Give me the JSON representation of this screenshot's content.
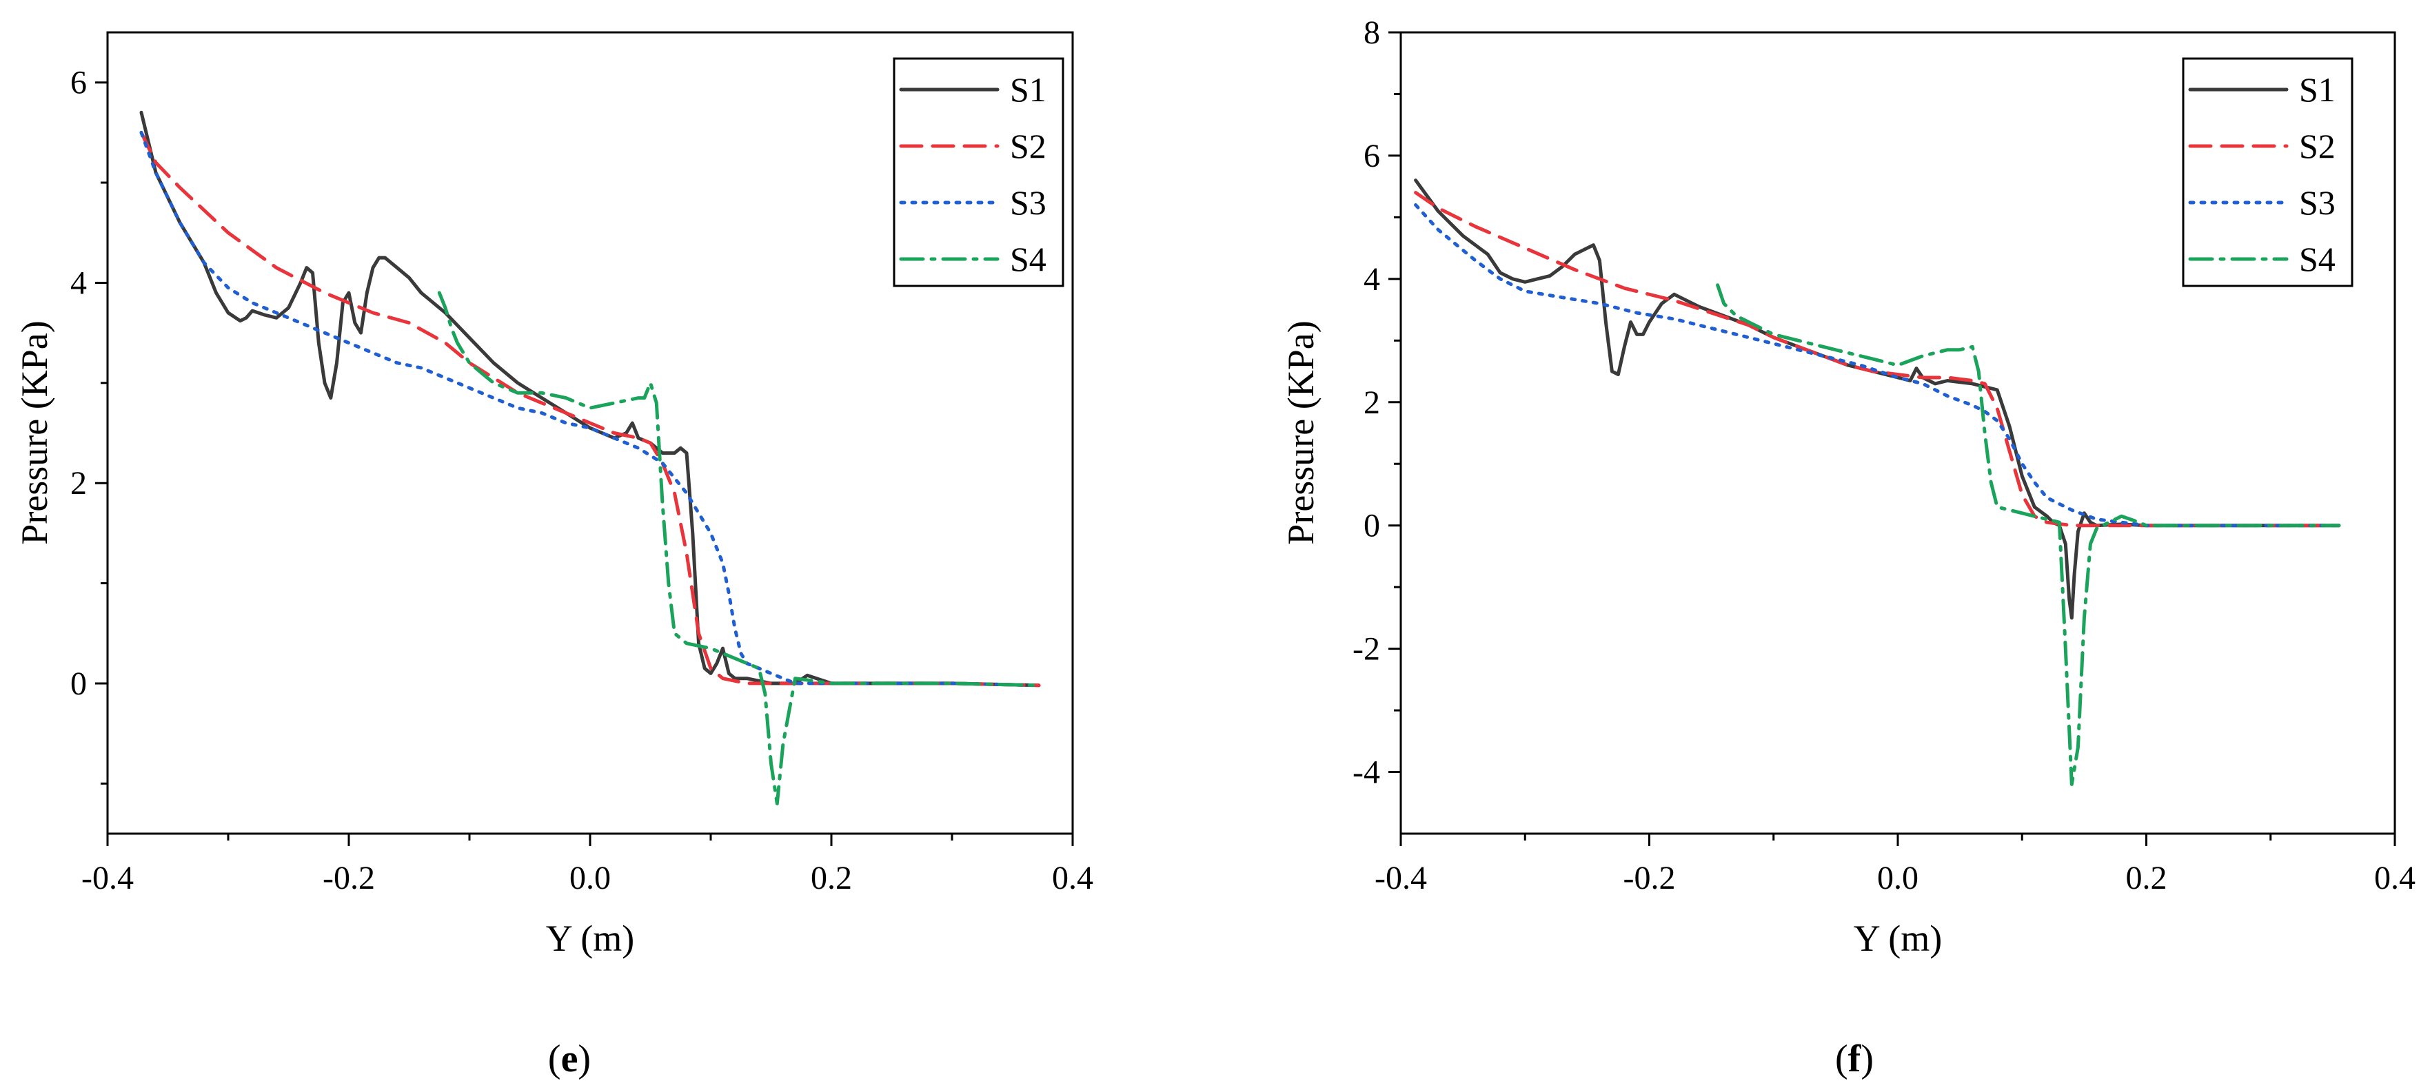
{
  "chart_data": [
    {
      "type": "line",
      "panel_label": "e",
      "title": "",
      "xlabel": "Y (m)",
      "ylabel": "Pressure (KPa)",
      "xlim": [
        -0.4,
        0.4
      ],
      "ylim": [
        -1.5,
        6.5
      ],
      "xticks": [
        -0.4,
        -0.2,
        0.0,
        0.2,
        0.4
      ],
      "xtick_labels": [
        "-0.4",
        "-0.2",
        "0.0",
        "0.2",
        "0.4"
      ],
      "yticks": [
        0,
        2,
        4,
        6
      ],
      "ytick_labels": [
        "0",
        "2",
        "4",
        "6"
      ],
      "legend_position": "top-right",
      "series": [
        {
          "name": "S1",
          "color": "#3a3a3a",
          "dash": "solid",
          "x": [
            -0.372,
            -0.36,
            -0.34,
            -0.32,
            -0.31,
            -0.3,
            -0.29,
            -0.285,
            -0.28,
            -0.275,
            -0.27,
            -0.26,
            -0.25,
            -0.24,
            -0.235,
            -0.23,
            -0.225,
            -0.22,
            -0.215,
            -0.21,
            -0.205,
            -0.2,
            -0.195,
            -0.19,
            -0.185,
            -0.18,
            -0.175,
            -0.17,
            -0.16,
            -0.15,
            -0.14,
            -0.13,
            -0.12,
            -0.1,
            -0.08,
            -0.06,
            -0.04,
            -0.02,
            0.0,
            0.01,
            0.02,
            0.03,
            0.035,
            0.04,
            0.05,
            0.06,
            0.07,
            0.075,
            0.08,
            0.085,
            0.09,
            0.095,
            0.1,
            0.105,
            0.11,
            0.115,
            0.12,
            0.13,
            0.15,
            0.17,
            0.18,
            0.2,
            0.3,
            0.372
          ],
          "y": [
            5.7,
            5.1,
            4.6,
            4.2,
            3.9,
            3.7,
            3.62,
            3.65,
            3.72,
            3.7,
            3.68,
            3.65,
            3.75,
            4.0,
            4.15,
            4.1,
            3.4,
            3.0,
            2.85,
            3.2,
            3.8,
            3.9,
            3.6,
            3.5,
            3.9,
            4.15,
            4.25,
            4.25,
            4.15,
            4.05,
            3.9,
            3.8,
            3.7,
            3.45,
            3.2,
            3.0,
            2.85,
            2.7,
            2.55,
            2.5,
            2.45,
            2.5,
            2.6,
            2.45,
            2.4,
            2.3,
            2.3,
            2.35,
            2.3,
            1.5,
            0.4,
            0.15,
            0.1,
            0.2,
            0.35,
            0.1,
            0.05,
            0.05,
            0.0,
            0.0,
            0.08,
            0.0,
            0.0,
            -0.02
          ]
        },
        {
          "name": "S2",
          "color": "#e8343a",
          "dash": "long",
          "x": [
            -0.372,
            -0.36,
            -0.34,
            -0.3,
            -0.26,
            -0.22,
            -0.18,
            -0.15,
            -0.12,
            -0.1,
            -0.08,
            -0.06,
            -0.04,
            -0.02,
            0.0,
            0.02,
            0.04,
            0.05,
            0.06,
            0.07,
            0.08,
            0.09,
            0.1,
            0.11,
            0.13,
            0.15,
            0.2,
            0.3,
            0.372
          ],
          "y": [
            5.5,
            5.2,
            4.95,
            4.5,
            4.15,
            3.9,
            3.7,
            3.6,
            3.4,
            3.2,
            3.05,
            2.9,
            2.8,
            2.7,
            2.6,
            2.5,
            2.45,
            2.4,
            2.2,
            1.9,
            1.3,
            0.5,
            0.15,
            0.05,
            0.0,
            0.0,
            0.0,
            0.0,
            -0.02
          ]
        },
        {
          "name": "S3",
          "color": "#1f5fd1",
          "dash": "dot",
          "x": [
            -0.372,
            -0.36,
            -0.34,
            -0.32,
            -0.3,
            -0.28,
            -0.26,
            -0.24,
            -0.22,
            -0.2,
            -0.18,
            -0.16,
            -0.14,
            -0.12,
            -0.1,
            -0.08,
            -0.06,
            -0.04,
            -0.02,
            0.0,
            0.02,
            0.04,
            0.06,
            0.08,
            0.09,
            0.1,
            0.11,
            0.115,
            0.12,
            0.125,
            0.13,
            0.14,
            0.15,
            0.17,
            0.2,
            0.3,
            0.372
          ],
          "y": [
            5.5,
            5.1,
            4.6,
            4.2,
            3.95,
            3.8,
            3.7,
            3.6,
            3.5,
            3.4,
            3.3,
            3.2,
            3.15,
            3.05,
            2.95,
            2.85,
            2.75,
            2.7,
            2.6,
            2.55,
            2.45,
            2.35,
            2.2,
            1.9,
            1.7,
            1.5,
            1.2,
            0.9,
            0.55,
            0.3,
            0.2,
            0.15,
            0.1,
            0.0,
            0.0,
            0.0,
            -0.02
          ]
        },
        {
          "name": "S4",
          "color": "#1aa35a",
          "dash": "dashdot",
          "x": [
            -0.125,
            -0.12,
            -0.115,
            -0.11,
            -0.1,
            -0.09,
            -0.08,
            -0.06,
            -0.04,
            -0.02,
            0.0,
            0.02,
            0.04,
            0.045,
            0.05,
            0.055,
            0.06,
            0.065,
            0.07,
            0.08,
            0.1,
            0.12,
            0.14,
            0.145,
            0.15,
            0.155,
            0.16,
            0.17,
            0.2,
            0.3,
            0.372
          ],
          "y": [
            3.9,
            3.75,
            3.55,
            3.4,
            3.2,
            3.1,
            3.0,
            2.9,
            2.9,
            2.85,
            2.75,
            2.8,
            2.85,
            2.85,
            3.0,
            2.8,
            1.8,
            1.0,
            0.5,
            0.4,
            0.35,
            0.25,
            0.15,
            -0.1,
            -0.8,
            -1.2,
            -0.6,
            0.05,
            0.0,
            0.0,
            -0.02
          ]
        }
      ]
    },
    {
      "type": "line",
      "panel_label": "f",
      "title": "",
      "xlabel": "Y (m)",
      "ylabel": "Pressure (KPa)",
      "xlim": [
        -0.4,
        0.4
      ],
      "ylim": [
        -5,
        8
      ],
      "xticks": [
        -0.4,
        -0.2,
        0.0,
        0.2,
        0.4
      ],
      "xtick_labels": [
        "-0.4",
        "-0.2",
        "0.0",
        "0.2",
        "0.4"
      ],
      "yticks": [
        -4,
        -2,
        0,
        2,
        4,
        6,
        8
      ],
      "ytick_labels": [
        "-4",
        "-2",
        "0",
        "2",
        "4",
        "6",
        "8"
      ],
      "legend_position": "top-right",
      "series": [
        {
          "name": "S1",
          "color": "#3a3a3a",
          "dash": "solid",
          "x": [
            -0.388,
            -0.37,
            -0.35,
            -0.33,
            -0.32,
            -0.31,
            -0.3,
            -0.29,
            -0.28,
            -0.27,
            -0.26,
            -0.25,
            -0.245,
            -0.24,
            -0.235,
            -0.23,
            -0.225,
            -0.22,
            -0.215,
            -0.21,
            -0.205,
            -0.2,
            -0.19,
            -0.18,
            -0.17,
            -0.16,
            -0.14,
            -0.12,
            -0.1,
            -0.08,
            -0.06,
            -0.04,
            -0.02,
            0.0,
            0.01,
            0.015,
            0.02,
            0.03,
            0.04,
            0.06,
            0.07,
            0.08,
            0.09,
            0.1,
            0.11,
            0.12,
            0.125,
            0.13,
            0.135,
            0.138,
            0.14,
            0.142,
            0.145,
            0.15,
            0.155,
            0.16,
            0.18,
            0.2,
            0.3,
            0.355
          ],
          "y": [
            5.6,
            5.1,
            4.7,
            4.4,
            4.1,
            4.0,
            3.95,
            4.0,
            4.05,
            4.2,
            4.4,
            4.5,
            4.55,
            4.3,
            3.3,
            2.5,
            2.45,
            2.9,
            3.3,
            3.1,
            3.1,
            3.3,
            3.6,
            3.75,
            3.65,
            3.55,
            3.4,
            3.25,
            3.05,
            2.9,
            2.75,
            2.6,
            2.5,
            2.4,
            2.35,
            2.55,
            2.4,
            2.3,
            2.35,
            2.3,
            2.25,
            2.2,
            1.6,
            0.8,
            0.3,
            0.15,
            0.05,
            0.0,
            -0.3,
            -1.2,
            -1.5,
            -0.8,
            -0.1,
            0.2,
            0.05,
            0.0,
            0.02,
            0.0,
            0.0,
            0.0
          ]
        },
        {
          "name": "S2",
          "color": "#e8343a",
          "dash": "long",
          "x": [
            -0.388,
            -0.37,
            -0.34,
            -0.3,
            -0.26,
            -0.22,
            -0.18,
            -0.15,
            -0.12,
            -0.1,
            -0.08,
            -0.06,
            -0.04,
            -0.02,
            0.0,
            0.02,
            0.04,
            0.06,
            0.07,
            0.08,
            0.09,
            0.1,
            0.11,
            0.12,
            0.14,
            0.16,
            0.2,
            0.3,
            0.355
          ],
          "y": [
            5.4,
            5.15,
            4.85,
            4.5,
            4.15,
            3.85,
            3.65,
            3.45,
            3.25,
            3.05,
            2.9,
            2.75,
            2.6,
            2.5,
            2.45,
            2.4,
            2.4,
            2.35,
            2.3,
            1.9,
            1.2,
            0.5,
            0.15,
            0.05,
            0.0,
            0.0,
            0.0,
            0.0,
            0.0
          ]
        },
        {
          "name": "S3",
          "color": "#1f5fd1",
          "dash": "dot",
          "x": [
            -0.388,
            -0.37,
            -0.34,
            -0.32,
            -0.3,
            -0.27,
            -0.24,
            -0.21,
            -0.18,
            -0.15,
            -0.12,
            -0.09,
            -0.06,
            -0.03,
            0.0,
            0.02,
            0.04,
            0.06,
            0.07,
            0.08,
            0.09,
            0.1,
            0.11,
            0.12,
            0.13,
            0.14,
            0.16,
            0.2,
            0.3,
            0.355
          ],
          "y": [
            5.2,
            4.8,
            4.3,
            4.0,
            3.8,
            3.7,
            3.6,
            3.45,
            3.35,
            3.2,
            3.05,
            2.9,
            2.75,
            2.6,
            2.4,
            2.3,
            2.1,
            1.95,
            1.85,
            1.7,
            1.4,
            1.0,
            0.7,
            0.45,
            0.35,
            0.25,
            0.1,
            0.0,
            0.0,
            0.0
          ]
        },
        {
          "name": "S4",
          "color": "#1aa35a",
          "dash": "dashdot",
          "x": [
            -0.145,
            -0.14,
            -0.13,
            -0.12,
            -0.1,
            -0.08,
            -0.06,
            -0.04,
            -0.02,
            0.0,
            0.02,
            0.04,
            0.05,
            0.06,
            0.065,
            0.07,
            0.075,
            0.08,
            0.09,
            0.1,
            0.11,
            0.12,
            0.13,
            0.135,
            0.14,
            0.145,
            0.15,
            0.155,
            0.16,
            0.17,
            0.18,
            0.19,
            0.2,
            0.3,
            0.355
          ],
          "y": [
            3.9,
            3.6,
            3.4,
            3.3,
            3.1,
            3.0,
            2.9,
            2.8,
            2.7,
            2.6,
            2.75,
            2.85,
            2.85,
            2.9,
            2.5,
            1.5,
            0.7,
            0.3,
            0.25,
            0.2,
            0.15,
            0.1,
            0.05,
            -2.0,
            -4.2,
            -3.6,
            -1.5,
            -0.3,
            -0.05,
            0.05,
            0.15,
            0.08,
            0.0,
            0.0,
            0.0
          ]
        }
      ]
    }
  ]
}
